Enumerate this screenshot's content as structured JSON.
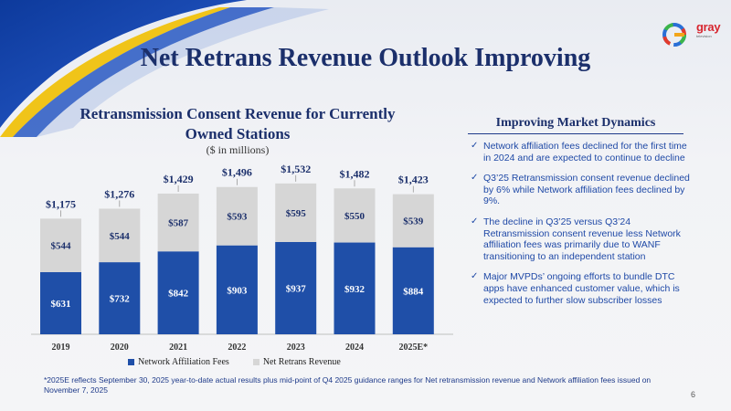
{
  "slide": {
    "title": "Net Retrans Revenue Outlook Improving",
    "page_number": "6",
    "logo_text": "gray",
    "logo_sub": "television"
  },
  "chart": {
    "title": "Retransmission Consent Revenue for Currently Owned Stations",
    "subtitle": "($ in millions)"
  },
  "chart_data": {
    "type": "bar",
    "stacked": true,
    "categories": [
      "2019",
      "2020",
      "2021",
      "2022",
      "2023",
      "2024",
      "2025E*"
    ],
    "series": [
      {
        "name": "Network Affiliation Fees",
        "values": [
          631,
          732,
          842,
          903,
          937,
          932,
          884
        ],
        "labels": [
          "$631",
          "$732",
          "$842",
          "$903",
          "$937",
          "$932",
          "$884"
        ],
        "color": "#1f4fa8"
      },
      {
        "name": "Net Retrans Revenue",
        "values": [
          544,
          544,
          587,
          593,
          595,
          550,
          539
        ],
        "labels": [
          "$544",
          "$544",
          "$587",
          "$593",
          "$595",
          "$550",
          "$539"
        ],
        "color": "#d6d6d6"
      }
    ],
    "totals": [
      "$1,175",
      "$1,276",
      "$1,429",
      "$1,496",
      "$1,532",
      "$1,482",
      "$1,423"
    ],
    "total_values": [
      1175,
      1276,
      1429,
      1496,
      1532,
      1482,
      1423
    ],
    "ylim": [
      0,
      1600
    ],
    "legend_position": "bottom",
    "grid": false
  },
  "panel": {
    "title": "Improving Market Dynamics",
    "bullets": [
      "Network affiliation fees declined for the first time in 2024 and are expected to continue to decline",
      "Q3’25 Retransmission consent revenue declined by 6% while Network affiliation fees declined by 9%.",
      "The decline in Q3’25 versus Q3’24 Retransmission consent revenue less Network affiliation fees was primarily due to WANF transitioning to an independent station",
      "Major MVPDs’ ongoing efforts to bundle DTC apps have enhanced customer value, which is expected to further slow subscriber losses"
    ]
  },
  "footnote": "*2025E reflects September 30, 2025 year-to-date actual results plus mid-point of Q4 2025 guidance ranges for Net retransmission revenue and Network affiliation fees issued on November 7, 2025"
}
